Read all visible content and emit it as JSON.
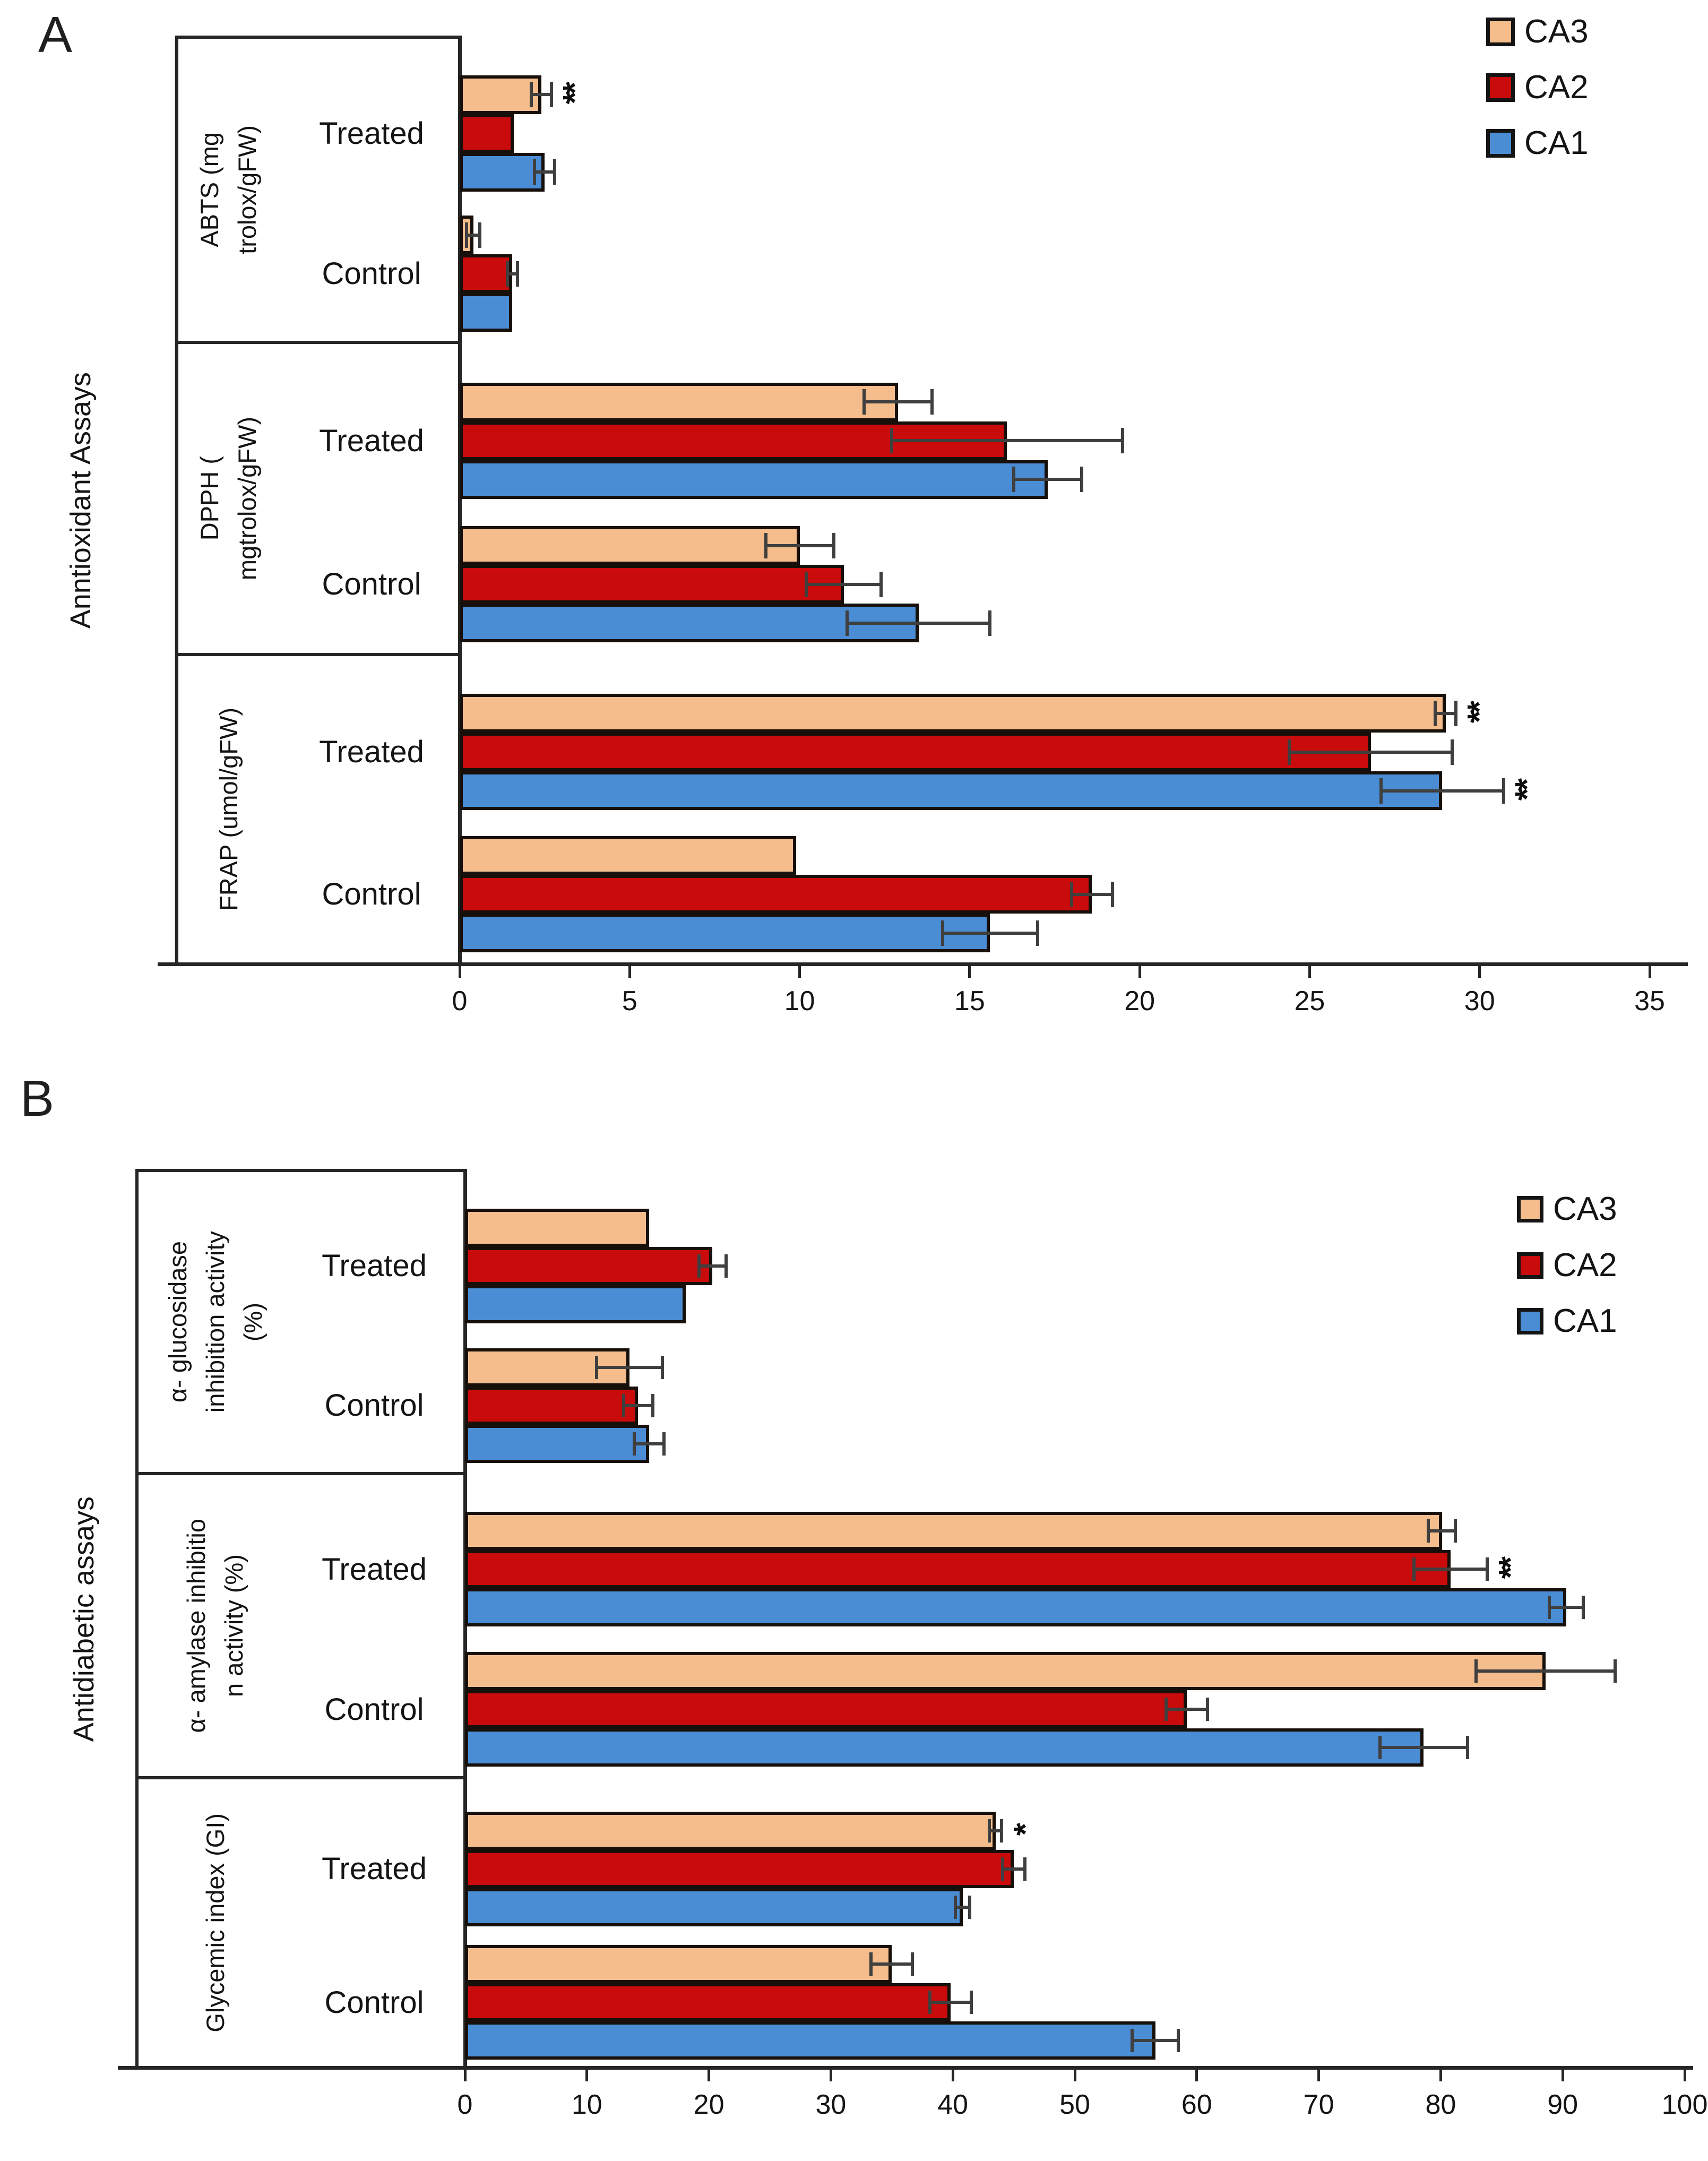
{
  "chart_data": [
    {
      "type": "bar",
      "orientation": "horizontal",
      "panel_letter": "A",
      "axis_group_label": "Anntioxidant Assays",
      "xlim": [
        0,
        35
      ],
      "xticks": [
        0,
        5,
        10,
        15,
        20,
        25,
        30,
        35
      ],
      "grid": false,
      "legend": {
        "position": "top-right",
        "entries": [
          "CA3",
          "CA2",
          "CA1"
        ]
      },
      "series_colors": {
        "CA3": "#F4BD8B",
        "CA2": "#C90B0B",
        "CA1": "#4A8DD4"
      },
      "bar_order_top_to_bottom": [
        "CA3",
        "CA2",
        "CA1"
      ],
      "groups": [
        {
          "label_text": "ABTS (mg trolox/gFW)",
          "label_lines": [
            "ABTS (mg",
            "trolox/gFW)"
          ],
          "categories": [
            {
              "name": "Treated",
              "values": {
                "CA3": 2.4,
                "CA2": 1.6,
                "CA1": 2.5
              },
              "errors": {
                "CA3": 0.3,
                "CA2": 0,
                "CA1": 0.3
              },
              "significance": {
                "CA3": "**"
              }
            },
            {
              "name": "Control",
              "values": {
                "CA3": 0.4,
                "CA2": 1.55,
                "CA1": 1.55
              },
              "errors": {
                "CA3": 0.2,
                "CA2": 0.15,
                "CA1": 0
              },
              "significance": {}
            }
          ]
        },
        {
          "label_text": "DPPH ( mgtrolox/gFW)",
          "label_lines": [
            "DPPH (",
            "mgtrolox/gFW)"
          ],
          "categories": [
            {
              "name": "Treated",
              "values": {
                "CA3": 12.9,
                "CA2": 16.1,
                "CA1": 17.3
              },
              "errors": {
                "CA3": 1.0,
                "CA2": 3.4,
                "CA1": 1.0
              },
              "significance": {}
            },
            {
              "name": "Control",
              "values": {
                "CA3": 10.0,
                "CA2": 11.3,
                "CA1": 13.5
              },
              "errors": {
                "CA3": 1.0,
                "CA2": 1.1,
                "CA1": 2.1
              },
              "significance": {}
            }
          ]
        },
        {
          "label_text": "FRAP (umol/gFW)",
          "label_lines": [
            "FRAP (umol/gFW)"
          ],
          "categories": [
            {
              "name": "Treated",
              "values": {
                "CA3": 29.0,
                "CA2": 26.8,
                "CA1": 28.9
              },
              "errors": {
                "CA3": 0.3,
                "CA2": 2.4,
                "CA1": 1.8
              },
              "significance": {
                "CA3": "**",
                "CA1": "**"
              }
            },
            {
              "name": "Control",
              "values": {
                "CA3": 9.9,
                "CA2": 18.6,
                "CA1": 15.6
              },
              "errors": {
                "CA3": 0,
                "CA2": 0.6,
                "CA1": 1.4
              },
              "significance": {}
            }
          ]
        }
      ]
    },
    {
      "type": "bar",
      "orientation": "horizontal",
      "panel_letter": "B",
      "axis_group_label": "Antidiabetic assays",
      "xlim": [
        0,
        100
      ],
      "xticks": [
        0,
        10,
        20,
        30,
        40,
        50,
        60,
        70,
        80,
        90,
        100
      ],
      "grid": false,
      "legend": {
        "position": "top-right",
        "entries": [
          "CA3",
          "CA2",
          "CA1"
        ]
      },
      "series_colors": {
        "CA3": "#F4BD8B",
        "CA2": "#C90B0B",
        "CA1": "#4A8DD4"
      },
      "bar_order_top_to_bottom": [
        "CA3",
        "CA2",
        "CA1"
      ],
      "groups": [
        {
          "label_text": "α- glucosidase inhibition activity (%)",
          "label_lines": [
            "α- glucosidase",
            "inhibition activity",
            "(%)"
          ],
          "categories": [
            {
              "name": "Treated",
              "values": {
                "CA3": 15.1,
                "CA2": 20.3,
                "CA1": 18.1
              },
              "errors": {
                "CA3": 0,
                "CA2": 1.1,
                "CA1": 0
              },
              "significance": {}
            },
            {
              "name": "Control",
              "values": {
                "CA3": 13.5,
                "CA2": 14.2,
                "CA1": 15.1
              },
              "errors": {
                "CA3": 2.7,
                "CA2": 1.2,
                "CA1": 1.2
              },
              "significance": {}
            }
          ]
        },
        {
          "label_text": "α- amylase inhibitio n activity (%)",
          "label_lines": [
            "α- amylase inhibitio",
            "n activity (%)"
          ],
          "categories": [
            {
              "name": "Treated",
              "values": {
                "CA3": 80.1,
                "CA2": 80.8,
                "CA1": 90.3
              },
              "errors": {
                "CA3": 1.1,
                "CA2": 3.0,
                "CA1": 1.4
              },
              "significance": {
                "CA2": "**"
              }
            },
            {
              "name": "Control",
              "values": {
                "CA3": 88.6,
                "CA2": 59.2,
                "CA1": 78.6
              },
              "errors": {
                "CA3": 5.7,
                "CA2": 1.7,
                "CA1": 3.6
              },
              "significance": {}
            }
          ]
        },
        {
          "label_text": "Glycemic index (GI)",
          "label_lines": [
            "Glycemic index (GI)"
          ],
          "categories": [
            {
              "name": "Treated",
              "values": {
                "CA3": 43.5,
                "CA2": 45.0,
                "CA1": 40.8
              },
              "errors": {
                "CA3": 0.5,
                "CA2": 0.9,
                "CA1": 0.6
              },
              "significance": {
                "CA3": "*"
              }
            },
            {
              "name": "Control",
              "values": {
                "CA3": 35.0,
                "CA2": 39.8,
                "CA1": 56.6
              },
              "errors": {
                "CA3": 1.7,
                "CA2": 1.7,
                "CA1": 1.9
              },
              "significance": {}
            }
          ]
        }
      ]
    }
  ]
}
